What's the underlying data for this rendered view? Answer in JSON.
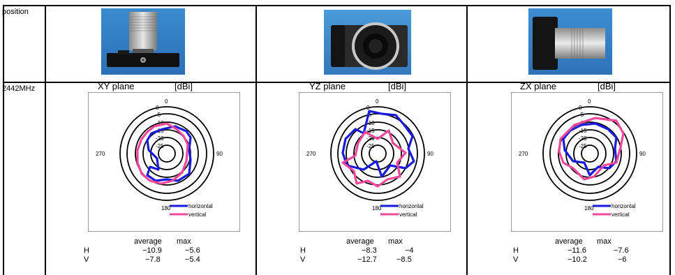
{
  "row_labels": {
    "position": "position",
    "frequency": "2442MHz"
  },
  "columns": [
    {
      "plot": {
        "title": "XY plane",
        "unit": "[dBi]",
        "ring_labels": [
          "0",
          "-5",
          "-10",
          "-15",
          "-20",
          "-25"
        ],
        "angle_labels": {
          "top": "0",
          "right": "90",
          "bottom": "180",
          "left": "270"
        },
        "legend": {
          "horizontal": "horizontal",
          "vertical": "vertical"
        }
      },
      "stats": {
        "headers": {
          "average": "average",
          "max": "max"
        },
        "h": {
          "label": "H",
          "average": "−10.9",
          "max": "−5.6"
        },
        "v": {
          "label": "V",
          "average": "−7.8",
          "max": "−5.4"
        }
      }
    },
    {
      "plot": {
        "title": "YZ plane",
        "unit": "[dBi]",
        "ring_labels": [
          "0",
          "-5",
          "-10",
          "-15",
          "-20",
          "-25"
        ],
        "angle_labels": {
          "top": "0",
          "right": "90",
          "bottom": "180",
          "left": "270"
        },
        "legend": {
          "horizontal": "horizontal",
          "vertical": "vertical"
        }
      },
      "stats": {
        "headers": {
          "average": "average",
          "max": "max"
        },
        "h": {
          "label": "H",
          "average": "−8.3",
          "max": "−4"
        },
        "v": {
          "label": "V",
          "average": "−12.7",
          "max": "−8.5"
        }
      }
    },
    {
      "plot": {
        "title": "ZX plane",
        "unit": "[dBi]",
        "ring_labels": [
          "0",
          "-5",
          "-10",
          "-15",
          "-20",
          "-25"
        ],
        "angle_labels": {
          "top": "0",
          "right": "90",
          "bottom": "180",
          "left": "270"
        },
        "legend": {
          "horizontal": "horizontal",
          "vertical": "vertical"
        }
      },
      "stats": {
        "headers": {
          "average": "average",
          "max": "max"
        },
        "h": {
          "label": "H",
          "average": "−11.6",
          "max": "−7.6"
        },
        "v": {
          "label": "V",
          "average": "−10.2",
          "max": "−6"
        }
      }
    }
  ],
  "colors": {
    "horizontal": "#1a1adc",
    "vertical": "#f0479a",
    "photo_bg": "#3b8fd3"
  }
}
